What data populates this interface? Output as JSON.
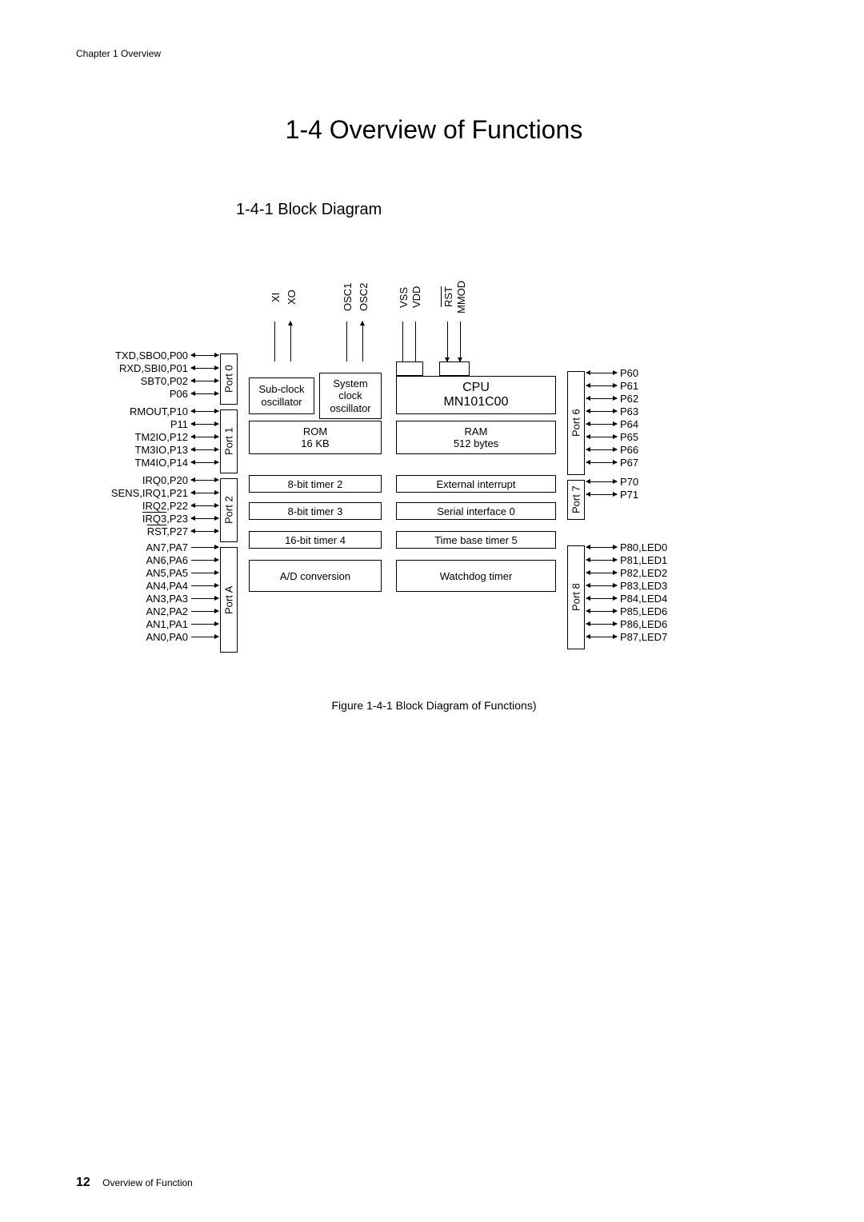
{
  "chapter_header": "Chapter 1  Overview",
  "main_title": "1-4  Overview of Functions",
  "sub_title": "1-4-1  Block Diagram",
  "caption": "Figure 1-4-1  Block Diagram of Functions)",
  "footer_page": "12",
  "footer_text": "Overview of Function",
  "top_pins": [
    "XI",
    "XO",
    "OSC1",
    "OSC2",
    "VSS",
    "VDD",
    "RST",
    "MMOD"
  ],
  "blocks": {
    "subclock": "Sub-clock oscillator",
    "sysclock_l1": "System",
    "sysclock_l2": "clock",
    "sysclock_l3": "oscillator",
    "cpu_l1": "CPU",
    "cpu_l2": "MN101C00",
    "rom_l1": "ROM",
    "rom_l2": "16 KB",
    "ram_l1": "RAM",
    "ram_l2": "512 bytes",
    "timer2": "8-bit timer 2",
    "timer3": "8-bit timer 3",
    "timer4": "16-bit timer 4",
    "adc": "A/D conversion",
    "extint": "External interrupt",
    "serial0": "Serial interface 0",
    "tbt5": "Time base timer 5",
    "wdt": "Watchdog timer"
  },
  "ports": {
    "p0": "Port 0",
    "p1": "Port 1",
    "p2": "Port 2",
    "pA": "Port A",
    "p6": "Port 6",
    "p7": "Port 7",
    "p8": "Port 8"
  },
  "left_pins": {
    "p0": [
      "TXD,SBO0,P00",
      "RXD,SBI0,P01",
      "SBT0,P02",
      "P06"
    ],
    "p1": [
      "RMOUT,P10",
      "P11",
      "TM2IO,P12",
      "TM3IO,P13",
      "TM4IO,P14"
    ],
    "p2": [
      "IRQ0,P20",
      "SENS,IRQ1,P21",
      "IRQ2,P22",
      "IRQ3,P23",
      "RST,P27"
    ],
    "pA": [
      "AN7,PA7",
      "AN6,PA6",
      "AN5,PA5",
      "AN4,PA4",
      "AN3,PA3",
      "AN2,PA2",
      "AN1,PA1",
      "AN0,PA0"
    ]
  },
  "right_pins": {
    "p6": [
      "P60",
      "P61",
      "P62",
      "P63",
      "P64",
      "P65",
      "P66",
      "P67"
    ],
    "p7": [
      "P70",
      "P71"
    ],
    "p8": [
      "P80,LED0",
      "P81,LED1",
      "P82,LED2",
      "P83,LED3",
      "P84,LED4",
      "P85,LED6",
      "P86,LED6",
      "P87,LED7"
    ]
  },
  "colors": {
    "line": "#000000",
    "bg": "#ffffff"
  }
}
